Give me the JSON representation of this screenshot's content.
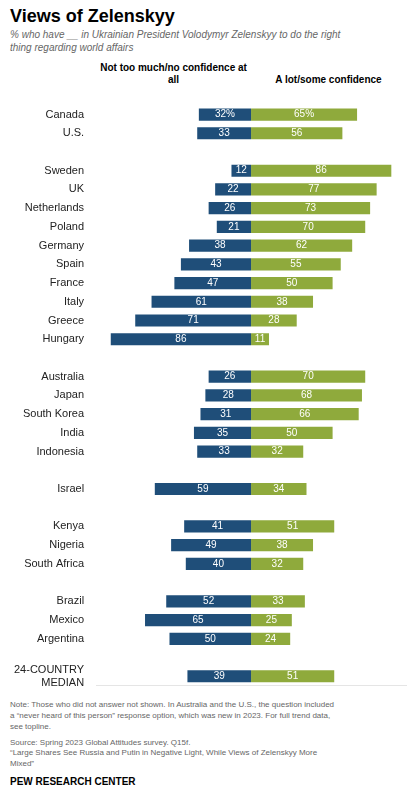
{
  "chart_data": {
    "type": "bar",
    "orientation": "horizontal",
    "title": "Views of Zelenskyy",
    "subtitle": "% who have __ in Ukrainian President Volodymyr Zelenskyy to do the right\nthing regarding world affairs",
    "categories": [
      "Canada",
      "U.S.",
      null,
      "Sweden",
      "UK",
      "Netherlands",
      "Poland",
      "Germany",
      "Spain",
      "France",
      "Italy",
      "Greece",
      "Hungary",
      null,
      "Australia",
      "Japan",
      "South Korea",
      "India",
      "Indonesia",
      null,
      "Israel",
      null,
      "Kenya",
      "Nigeria",
      "South Africa",
      null,
      "Brazil",
      "Mexico",
      "Argentina",
      null,
      "24-COUNTRY\nMEDIAN"
    ],
    "series": [
      {
        "name": "Not too much/no confidence at all",
        "color": "#1f4e79",
        "values": [
          32,
          33,
          null,
          12,
          22,
          26,
          21,
          38,
          43,
          47,
          61,
          71,
          86,
          null,
          26,
          28,
          31,
          35,
          33,
          null,
          59,
          null,
          41,
          49,
          40,
          null,
          52,
          65,
          50,
          null,
          39
        ],
        "value_labels": [
          "32%",
          "33",
          null,
          "12",
          "22",
          "26",
          "21",
          "38",
          "43",
          "47",
          "61",
          "71",
          "86",
          null,
          "26",
          "28",
          "31",
          "35",
          "33",
          null,
          "59",
          null,
          "41",
          "49",
          "40",
          null,
          "52",
          "65",
          "50",
          null,
          "39"
        ]
      },
      {
        "name": "A lot/some confidence",
        "color": "#8faa3c",
        "values": [
          65,
          56,
          null,
          86,
          77,
          73,
          70,
          62,
          55,
          50,
          38,
          28,
          11,
          null,
          70,
          68,
          66,
          50,
          32,
          null,
          34,
          null,
          51,
          38,
          32,
          null,
          33,
          25,
          24,
          null,
          51
        ],
        "value_labels": [
          "65%",
          "56",
          null,
          "86",
          "77",
          "73",
          "70",
          "62",
          "55",
          "50",
          "38",
          "28",
          "11",
          null,
          "70",
          "68",
          "66",
          "50",
          "32",
          null,
          "34",
          null,
          "51",
          "38",
          "32",
          null,
          "33",
          "25",
          "24",
          null,
          "51"
        ]
      }
    ],
    "xlim": [
      -95,
      95
    ],
    "data_labels": true,
    "grid": false,
    "tick_labels": "y",
    "note": "Note: Those who did not answer not shown. In Australia and the U.S., the question included\na “never heard of this person” response option, which was new in 2023. For full trend data,\nsee topline.",
    "source": "Source: Spring 2023 Global Attitudes survey. Q15f.\n“Large Shares See Russia and Putin in Negative Light, While Views of Zelenskyy More\nMixed”",
    "footer": "PEW RESEARCH CENTER"
  }
}
